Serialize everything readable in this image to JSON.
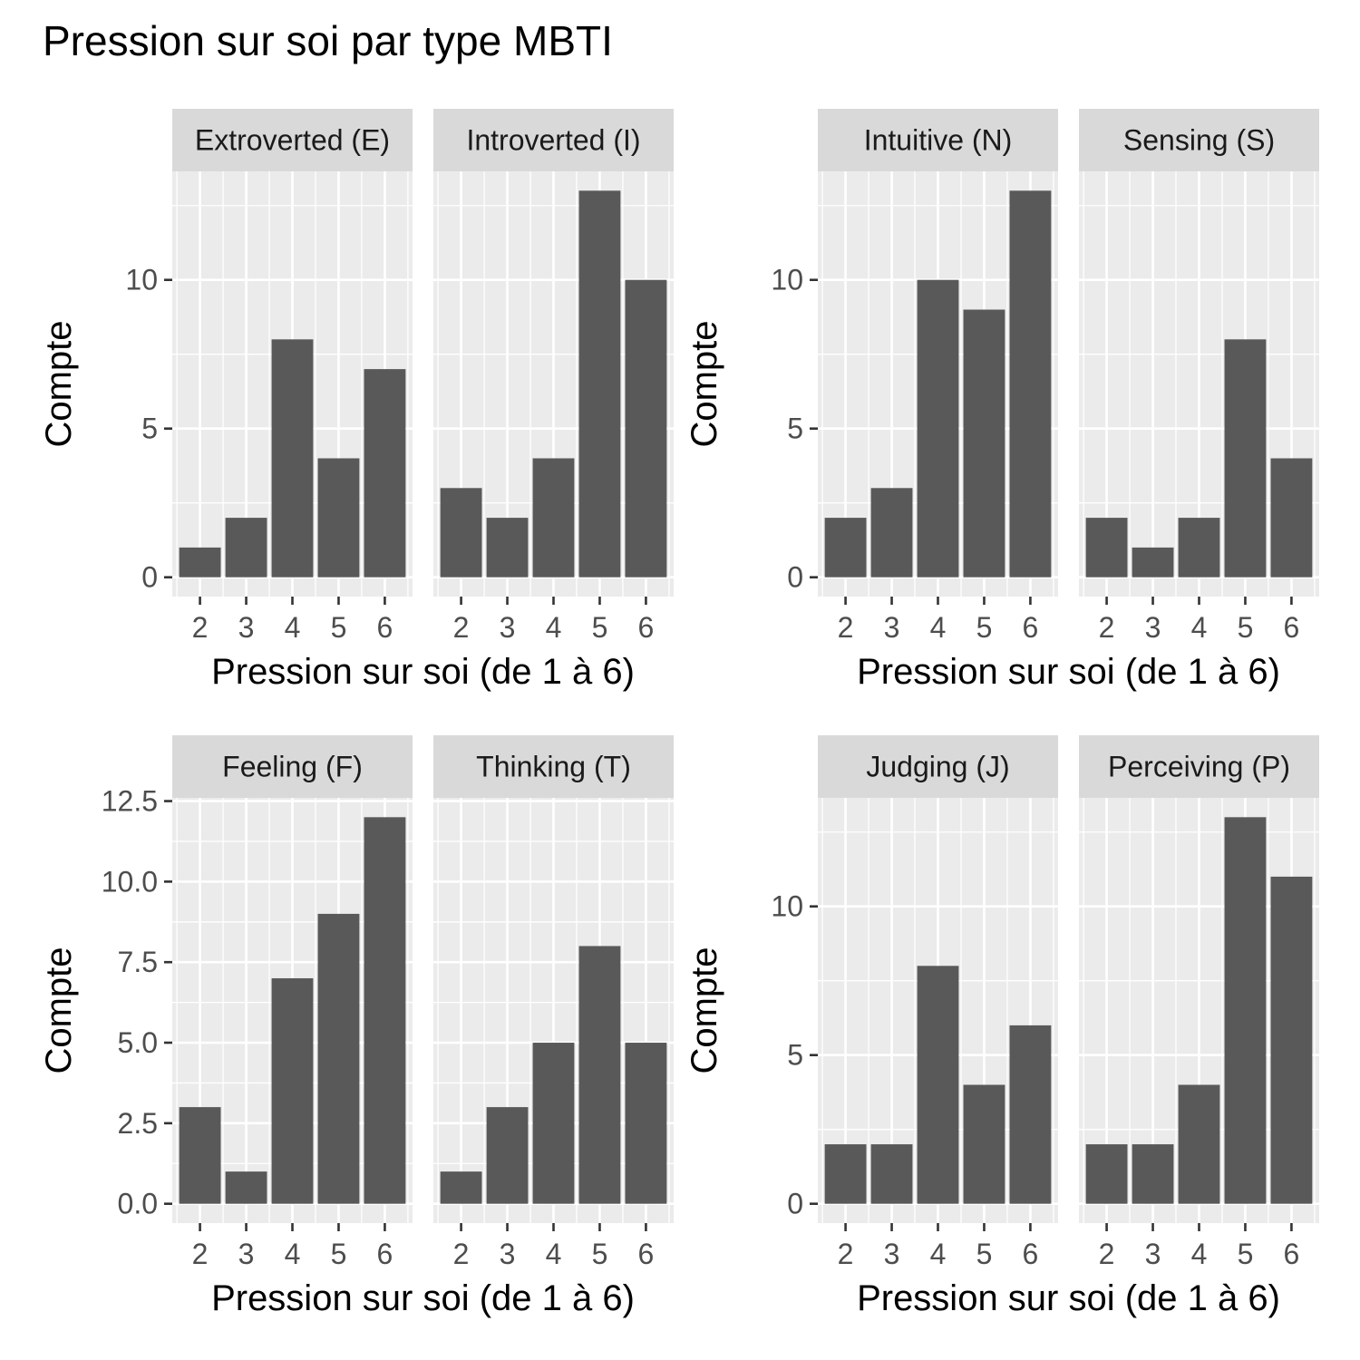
{
  "title": "Pression sur soi par type MBTI",
  "colors": {
    "panel_background": "#EBEBEB",
    "strip_background": "#D9D9D9",
    "grid_major": "#FFFFFF",
    "bar_fill": "#595959",
    "axis_text": "#4D4D4D",
    "title_text": "#000000"
  },
  "chart_data": [
    {
      "type": "bar",
      "xlabel": "Pression sur soi (de 1 à 6)",
      "ylabel": "Compte",
      "categories": [
        "2",
        "3",
        "4",
        "5",
        "6"
      ],
      "yticks": [
        "0",
        "5",
        "10"
      ],
      "ylim": [
        -0.65,
        13.65
      ],
      "facets": [
        {
          "name": "Extroverted (E)",
          "values": [
            1,
            2,
            8,
            4,
            7
          ]
        },
        {
          "name": "Introverted (I)",
          "values": [
            3,
            2,
            4,
            13,
            10
          ]
        }
      ]
    },
    {
      "type": "bar",
      "xlabel": "Pression sur soi (de 1 à 6)",
      "ylabel": "Compte",
      "categories": [
        "2",
        "3",
        "4",
        "5",
        "6"
      ],
      "yticks": [
        "0",
        "5",
        "10"
      ],
      "ylim": [
        -0.65,
        13.65
      ],
      "facets": [
        {
          "name": "Intuitive (N)",
          "values": [
            2,
            3,
            10,
            9,
            13
          ]
        },
        {
          "name": "Sensing (S)",
          "values": [
            2,
            1,
            2,
            8,
            4
          ]
        }
      ]
    },
    {
      "type": "bar",
      "xlabel": "Pression sur soi (de 1 à 6)",
      "ylabel": "Compte",
      "categories": [
        "2",
        "3",
        "4",
        "5",
        "6"
      ],
      "yticks": [
        "0.0",
        "2.5",
        "5.0",
        "7.5",
        "10.0",
        "12.5"
      ],
      "ylim": [
        -0.6,
        12.6
      ],
      "facets": [
        {
          "name": "Feeling (F)",
          "values": [
            3,
            1,
            7,
            9,
            12
          ]
        },
        {
          "name": "Thinking (T)",
          "values": [
            1,
            3,
            5,
            8,
            5
          ]
        }
      ]
    },
    {
      "type": "bar",
      "xlabel": "Pression sur soi (de 1 à 6)",
      "ylabel": "Compte",
      "categories": [
        "2",
        "3",
        "4",
        "5",
        "6"
      ],
      "yticks": [
        "0",
        "5",
        "10"
      ],
      "ylim": [
        -0.65,
        13.65
      ],
      "facets": [
        {
          "name": "Judging (J)",
          "values": [
            2,
            2,
            8,
            4,
            6
          ]
        },
        {
          "name": "Perceiving (P)",
          "values": [
            2,
            2,
            4,
            13,
            11
          ]
        }
      ]
    }
  ]
}
